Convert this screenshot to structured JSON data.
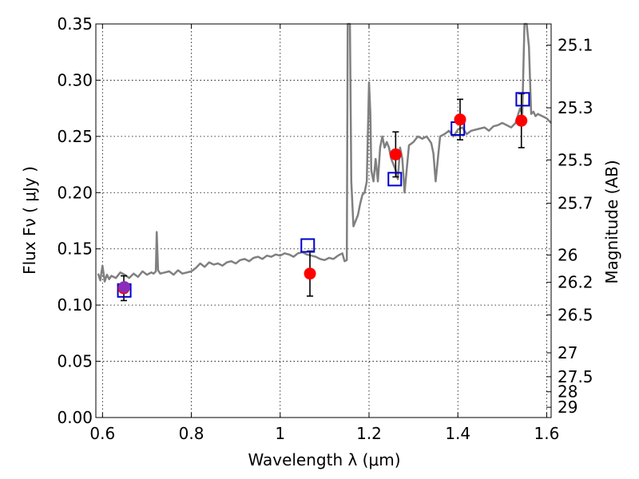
{
  "chart_data": {
    "type": "scatter",
    "xlabel": "Wavelength  λ (μm)",
    "ylabel_left": "Flux  Fν  ( μJy )",
    "ylabel_right": "Magnitude (AB)",
    "xlim": [
      0.585,
      1.61
    ],
    "ylim": [
      0.0,
      0.35
    ],
    "grid": true,
    "x_ticks": [
      0.6,
      0.8,
      1.0,
      1.2,
      1.4,
      1.6
    ],
    "x_tick_labels": [
      "0.6",
      "0.8",
      "1",
      "1.2",
      "1.4",
      "1.6"
    ],
    "y_ticks": [
      0.0,
      0.05,
      0.1,
      0.15,
      0.2,
      0.25,
      0.3,
      0.35
    ],
    "y_tick_labels": [
      "0.00",
      "0.05",
      "0.10",
      "0.15",
      "0.20",
      "0.25",
      "0.30",
      "0.35"
    ],
    "mag_ticks": [
      25.1,
      25.3,
      25.5,
      25.7,
      26,
      26.2,
      26.5,
      27,
      27.5,
      28,
      29
    ],
    "mag_tick_labels": [
      "25.1",
      "25.3",
      "25.5",
      "25.7",
      "26",
      "26.2",
      "26.5",
      "27",
      "27.5",
      "28",
      "29"
    ],
    "series": [
      {
        "kind": "line",
        "color": "#808080",
        "x": [
          0.59,
          0.595,
          0.6,
          0.605,
          0.61,
          0.615,
          0.62,
          0.63,
          0.64,
          0.65,
          0.66,
          0.67,
          0.68,
          0.69,
          0.7,
          0.71,
          0.715,
          0.72,
          0.722,
          0.725,
          0.73,
          0.74,
          0.75,
          0.76,
          0.77,
          0.78,
          0.79,
          0.8,
          0.81,
          0.82,
          0.83,
          0.84,
          0.85,
          0.86,
          0.87,
          0.88,
          0.89,
          0.9,
          0.91,
          0.92,
          0.93,
          0.94,
          0.95,
          0.96,
          0.97,
          0.98,
          0.99,
          1.0,
          1.01,
          1.02,
          1.03,
          1.04,
          1.05,
          1.06,
          1.07,
          1.08,
          1.09,
          1.1,
          1.11,
          1.12,
          1.13,
          1.14,
          1.145,
          1.15,
          1.152,
          1.155,
          1.157,
          1.16,
          1.165,
          1.17,
          1.175,
          1.18,
          1.185,
          1.19,
          1.195,
          1.2,
          1.203,
          1.205,
          1.21,
          1.215,
          1.22,
          1.225,
          1.23,
          1.235,
          1.24,
          1.245,
          1.25,
          1.255,
          1.26,
          1.265,
          1.27,
          1.275,
          1.28,
          1.29,
          1.3,
          1.31,
          1.32,
          1.33,
          1.34,
          1.345,
          1.35,
          1.355,
          1.36,
          1.37,
          1.38,
          1.39,
          1.4,
          1.41,
          1.42,
          1.43,
          1.44,
          1.45,
          1.46,
          1.47,
          1.48,
          1.49,
          1.5,
          1.51,
          1.52,
          1.53,
          1.54,
          1.545,
          1.55,
          1.555,
          1.56,
          1.565,
          1.57,
          1.575,
          1.58,
          1.59,
          1.6,
          1.61
        ],
        "y": [
          0.128,
          0.122,
          0.135,
          0.121,
          0.127,
          0.123,
          0.126,
          0.124,
          0.129,
          0.127,
          0.124,
          0.128,
          0.125,
          0.13,
          0.127,
          0.129,
          0.128,
          0.13,
          0.165,
          0.131,
          0.128,
          0.129,
          0.13,
          0.127,
          0.131,
          0.128,
          0.129,
          0.13,
          0.133,
          0.137,
          0.134,
          0.138,
          0.136,
          0.137,
          0.135,
          0.138,
          0.139,
          0.137,
          0.14,
          0.141,
          0.139,
          0.142,
          0.143,
          0.141,
          0.144,
          0.143,
          0.145,
          0.144,
          0.146,
          0.145,
          0.143,
          0.146,
          0.147,
          0.145,
          0.144,
          0.143,
          0.141,
          0.14,
          0.142,
          0.141,
          0.144,
          0.146,
          0.139,
          0.14,
          0.35,
          0.35,
          0.35,
          0.21,
          0.17,
          0.175,
          0.18,
          0.19,
          0.198,
          0.2,
          0.21,
          0.298,
          0.27,
          0.22,
          0.21,
          0.23,
          0.21,
          0.24,
          0.25,
          0.24,
          0.245,
          0.24,
          0.23,
          0.225,
          0.22,
          0.212,
          0.24,
          0.23,
          0.2,
          0.242,
          0.245,
          0.25,
          0.248,
          0.25,
          0.244,
          0.235,
          0.21,
          0.23,
          0.25,
          0.252,
          0.255,
          0.25,
          0.256,
          0.258,
          0.252,
          0.255,
          0.256,
          0.257,
          0.258,
          0.255,
          0.259,
          0.26,
          0.262,
          0.26,
          0.258,
          0.262,
          0.275,
          0.27,
          0.35,
          0.35,
          0.33,
          0.27,
          0.272,
          0.268,
          0.27,
          0.268,
          0.266,
          0.262
        ]
      },
      {
        "kind": "errorbar",
        "color": "#ff0000",
        "x": [
          0.648,
          1.067,
          1.26,
          1.405,
          1.543
        ],
        "y": [
          0.115,
          0.128,
          0.234,
          0.265,
          0.264
        ],
        "yerr": [
          0.011,
          0.02,
          0.02,
          0.018,
          0.024
        ]
      },
      {
        "kind": "open-squares",
        "color": "#0000cc",
        "x": [
          0.649,
          1.062,
          1.258,
          1.4,
          1.546
        ],
        "y": [
          0.113,
          0.153,
          0.212,
          0.257,
          0.283
        ]
      },
      {
        "kind": "dot",
        "color": "#8b2cb8",
        "x": [
          0.649
        ],
        "y": [
          0.116
        ]
      }
    ]
  }
}
